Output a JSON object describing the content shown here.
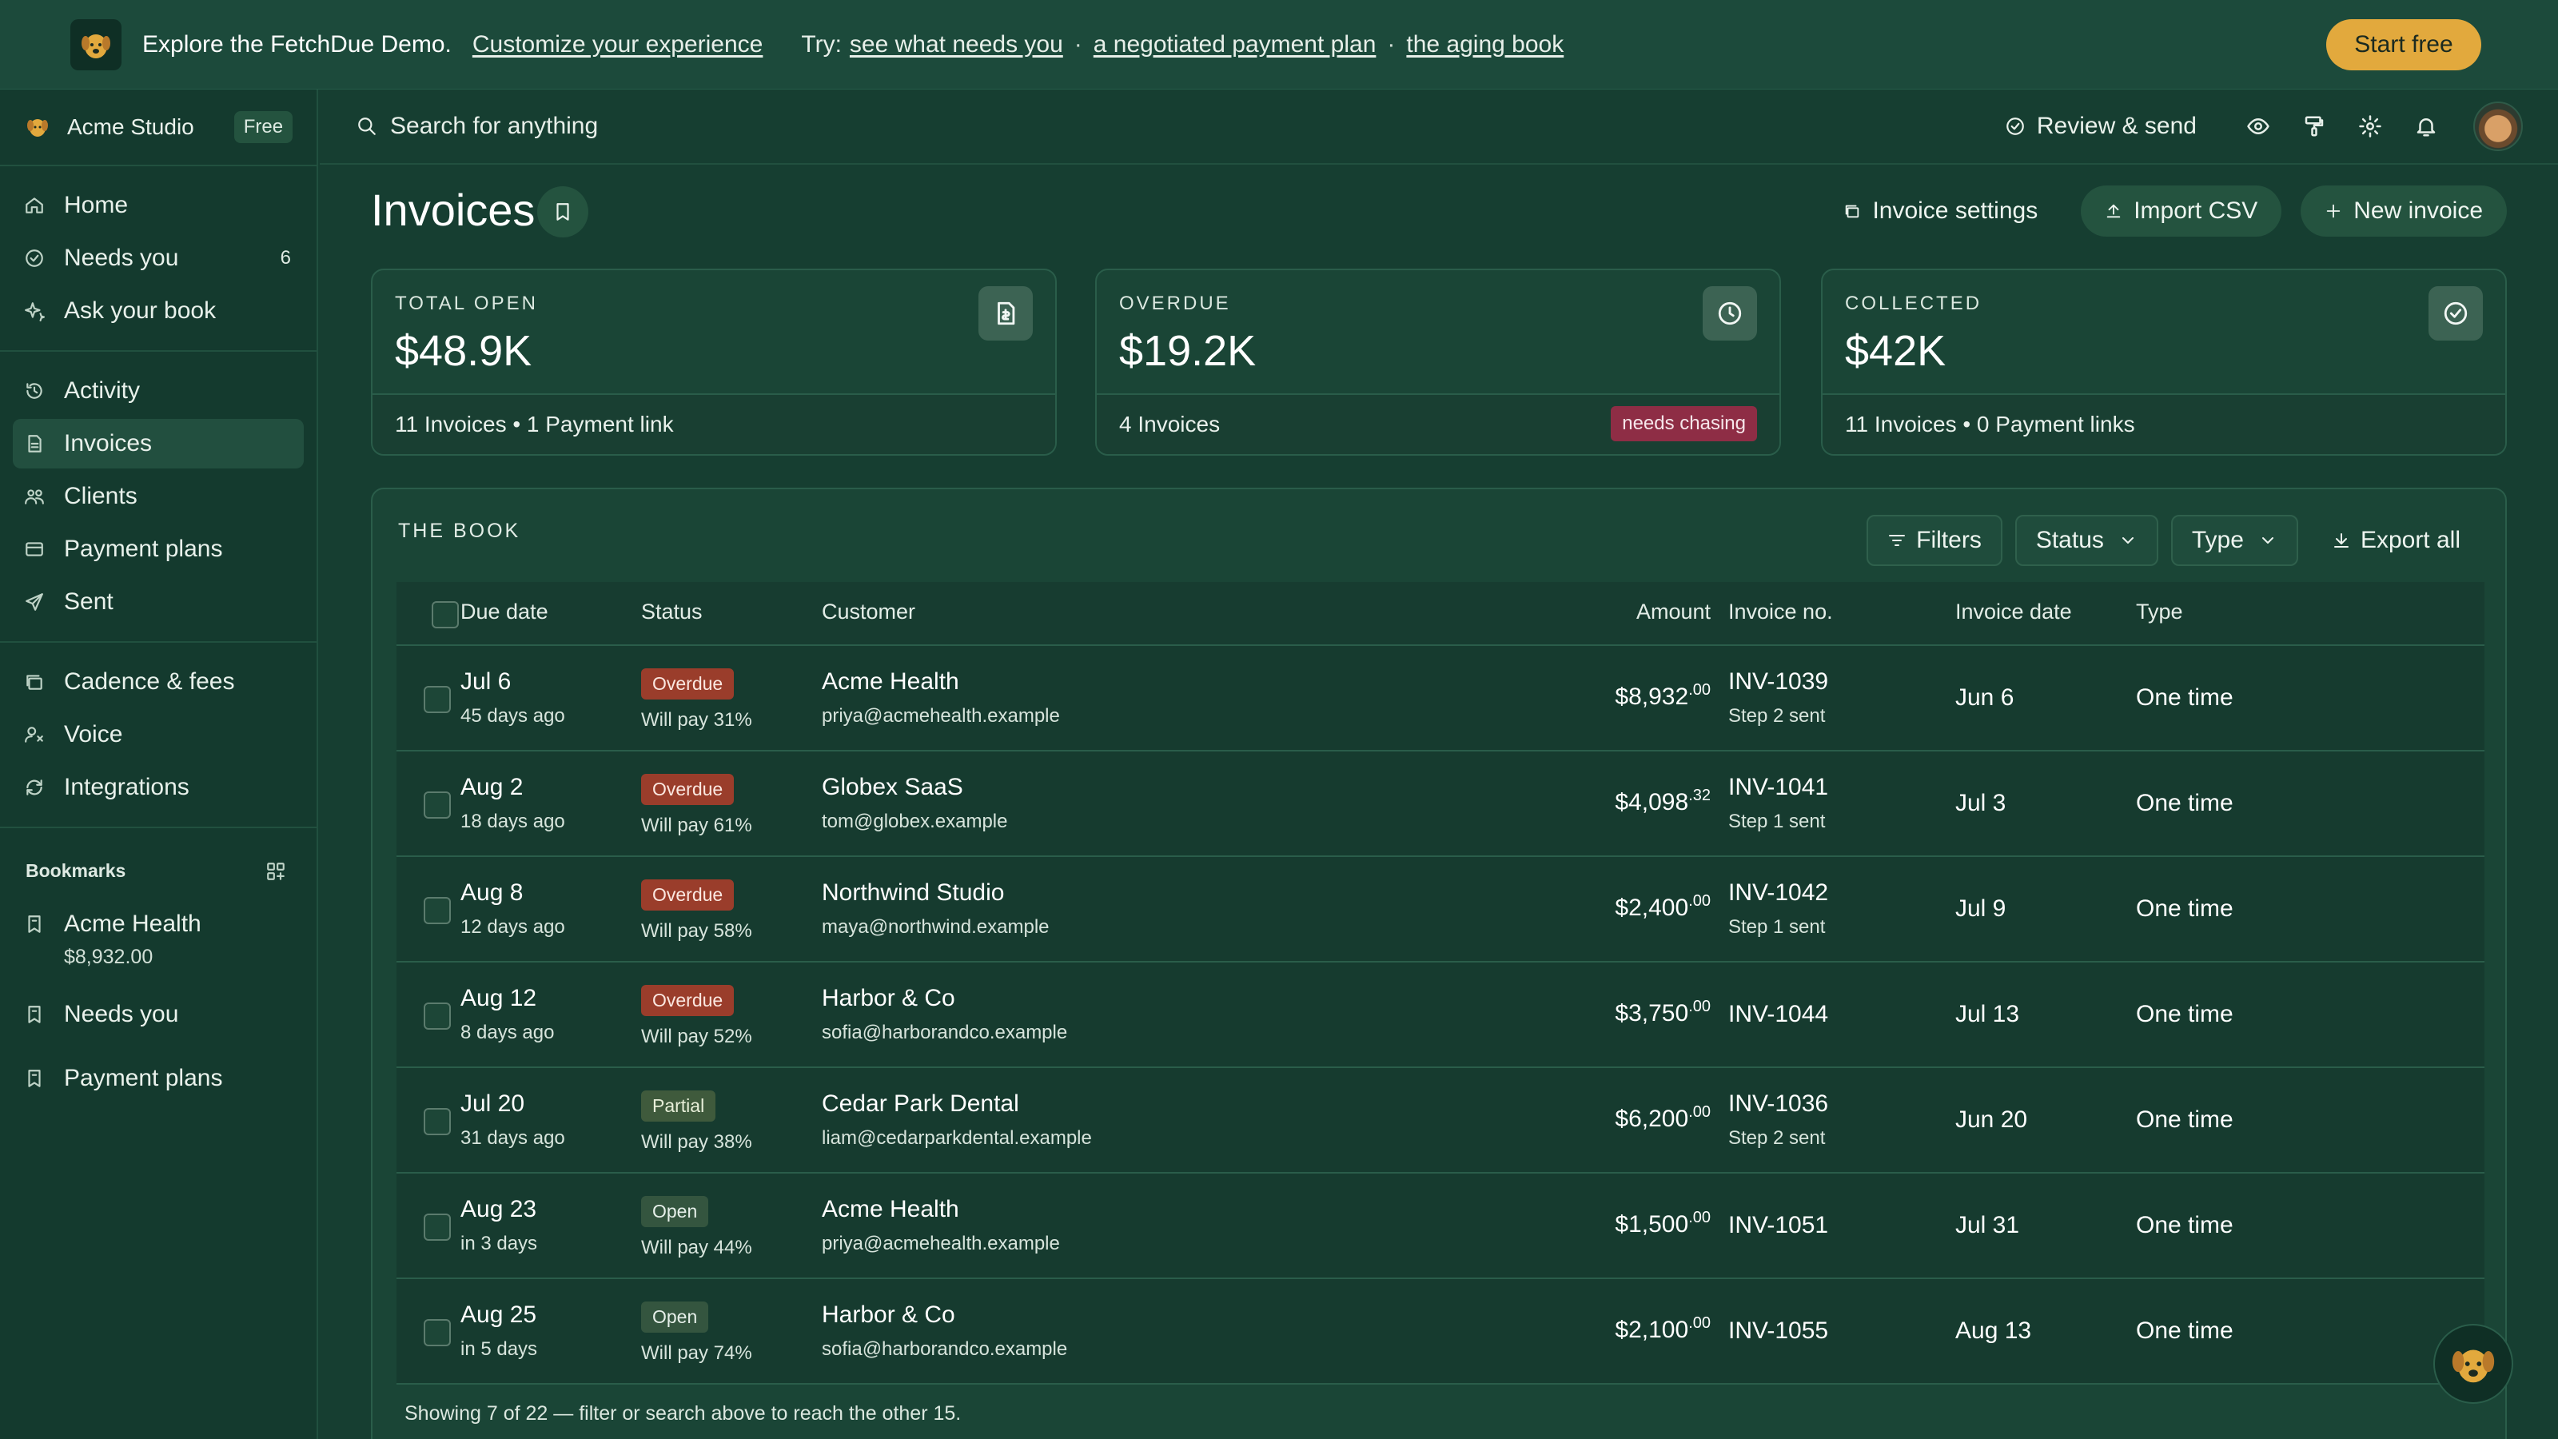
{
  "banner": {
    "message": "Explore the FetchDue Demo.",
    "customize_link": "Customize your experience",
    "try_label": "Try:",
    "try_links": [
      "see what needs you",
      "a negotiated payment plan",
      "the aging book"
    ],
    "separator": "·",
    "start_label": "Start free",
    "accent": "#e2a93d"
  },
  "workspace": {
    "name": "Acme Studio",
    "plan_badge": "Free"
  },
  "sidebar": {
    "primary": [
      {
        "label": "Home",
        "icon": "home-icon"
      },
      {
        "label": "Needs you",
        "icon": "check-circle-icon",
        "count": "6"
      },
      {
        "label": "Ask your book",
        "icon": "sparkle-icon"
      }
    ],
    "secondary": [
      {
        "label": "Activity",
        "icon": "history-icon"
      },
      {
        "label": "Invoices",
        "icon": "invoice-icon",
        "active": true
      },
      {
        "label": "Clients",
        "icon": "users-icon"
      },
      {
        "label": "Payment plans",
        "icon": "card-icon"
      },
      {
        "label": "Sent",
        "icon": "send-icon"
      }
    ],
    "tertiary": [
      {
        "label": "Cadence & fees",
        "icon": "stack-icon"
      },
      {
        "label": "Voice",
        "icon": "voice-icon"
      },
      {
        "label": "Integrations",
        "icon": "sync-icon"
      }
    ],
    "bookmarks_heading": "Bookmarks",
    "bookmarks": [
      {
        "label": "Acme Health",
        "sub": "$8,932.00"
      },
      {
        "label": "Needs you",
        "sub": ""
      },
      {
        "label": "Payment plans",
        "sub": ""
      }
    ]
  },
  "topbar": {
    "search_placeholder": "Search for anything",
    "review_label": "Review & send"
  },
  "page": {
    "title": "Invoices",
    "actions": {
      "settings": "Invoice settings",
      "import": "Import CSV",
      "new": "New invoice"
    }
  },
  "stats": [
    {
      "label": "TOTAL OPEN",
      "value": "$48.9K",
      "foot": "11 Invoices • 1 Payment link",
      "icon": "invoice-icon"
    },
    {
      "label": "OVERDUE",
      "value": "$19.2K",
      "foot": "4 Invoices",
      "badge": "needs chasing",
      "icon": "clock-icon"
    },
    {
      "label": "COLLECTED",
      "value": "$42K",
      "foot": "11 Invoices • 0 Payment links",
      "icon": "check-circle-icon"
    }
  ],
  "book": {
    "title": "THE BOOK",
    "filters_label": "Filters",
    "status_label": "Status",
    "type_label": "Type",
    "export_label": "Export all",
    "columns": [
      "Due date",
      "Status",
      "Customer",
      "Amount",
      "Invoice no.",
      "Invoice date",
      "Type"
    ],
    "rows": [
      {
        "due": "Jul 6",
        "due_sub": "45 days ago",
        "status": "Overdue",
        "status_kind": "overdue",
        "will_pay": "Will pay 31%",
        "customer": "Acme Health",
        "email": "priya@acmehealth.example",
        "amount": "$8,932",
        "cents": ".00",
        "invoice": "INV-1039",
        "step": "Step 2 sent",
        "invoice_date": "Jun 6",
        "type": "One time"
      },
      {
        "due": "Aug 2",
        "due_sub": "18 days ago",
        "status": "Overdue",
        "status_kind": "overdue",
        "will_pay": "Will pay 61%",
        "customer": "Globex SaaS",
        "email": "tom@globex.example",
        "amount": "$4,098",
        "cents": ".32",
        "invoice": "INV-1041",
        "step": "Step 1 sent",
        "invoice_date": "Jul 3",
        "type": "One time"
      },
      {
        "due": "Aug 8",
        "due_sub": "12 days ago",
        "status": "Overdue",
        "status_kind": "overdue",
        "will_pay": "Will pay 58%",
        "customer": "Northwind Studio",
        "email": "maya@northwind.example",
        "amount": "$2,400",
        "cents": ".00",
        "invoice": "INV-1042",
        "step": "Step 1 sent",
        "invoice_date": "Jul 9",
        "type": "One time"
      },
      {
        "due": "Aug 12",
        "due_sub": "8 days ago",
        "status": "Overdue",
        "status_kind": "overdue",
        "will_pay": "Will pay 52%",
        "customer": "Harbor & Co",
        "email": "sofia@harborandco.example",
        "amount": "$3,750",
        "cents": ".00",
        "invoice": "INV-1044",
        "step": "",
        "invoice_date": "Jul 13",
        "type": "One time"
      },
      {
        "due": "Jul 20",
        "due_sub": "31 days ago",
        "status": "Partial",
        "status_kind": "partial",
        "will_pay": "Will pay 38%",
        "customer": "Cedar Park Dental",
        "email": "liam@cedarparkdental.example",
        "amount": "$6,200",
        "cents": ".00",
        "invoice": "INV-1036",
        "step": "Step 2 sent",
        "invoice_date": "Jun 20",
        "type": "One time"
      },
      {
        "due": "Aug 23",
        "due_sub": "in 3 days",
        "status": "Open",
        "status_kind": "open",
        "will_pay": "Will pay 44%",
        "customer": "Acme Health",
        "email": "priya@acmehealth.example",
        "amount": "$1,500",
        "cents": ".00",
        "invoice": "INV-1051",
        "step": "",
        "invoice_date": "Jul 31",
        "type": "One time"
      },
      {
        "due": "Aug 25",
        "due_sub": "in 5 days",
        "status": "Open",
        "status_kind": "open",
        "will_pay": "Will pay 74%",
        "customer": "Harbor & Co",
        "email": "sofia@harborandco.example",
        "amount": "$2,100",
        "cents": ".00",
        "invoice": "INV-1055",
        "step": "",
        "invoice_date": "Aug 13",
        "type": "One time"
      }
    ],
    "footer_note": "Showing 7 of 22 — filter or search above to reach the other 15."
  }
}
